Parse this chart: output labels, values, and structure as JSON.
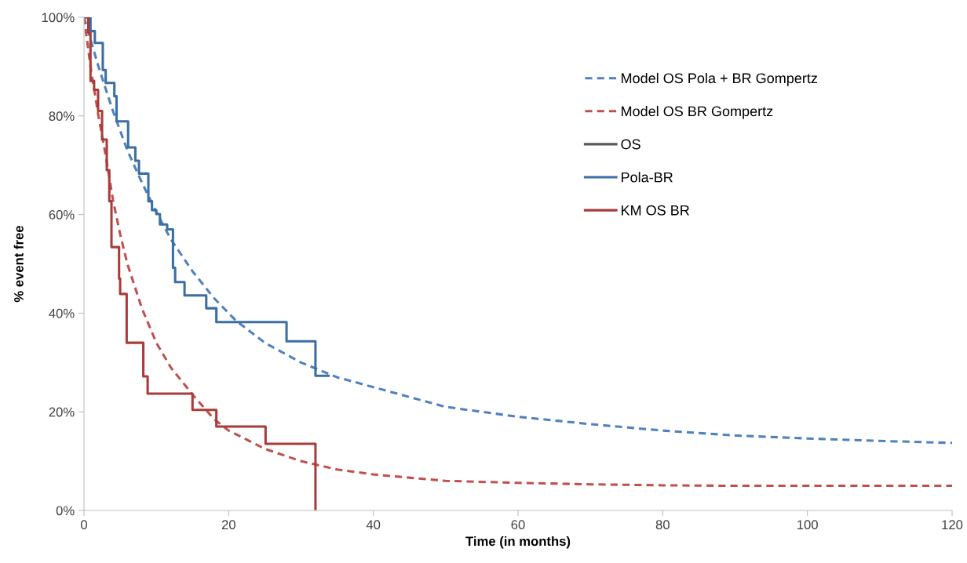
{
  "chart_data": {
    "type": "line",
    "xlabel": "Time (in months)",
    "ylabel": "% event free",
    "xlim": [
      0,
      120
    ],
    "xticks": [
      0,
      20,
      40,
      60,
      80,
      100,
      120
    ],
    "ylim": [
      0,
      100
    ],
    "yticks": [
      {
        "value": 0,
        "label": "0%"
      },
      {
        "value": 20,
        "label": "20%"
      },
      {
        "value": 40,
        "label": "40%"
      },
      {
        "value": 60,
        "label": "60%"
      },
      {
        "value": 80,
        "label": "80%"
      },
      {
        "value": 100,
        "label": "100%"
      }
    ],
    "grid": false,
    "legend": "right",
    "marker": "none",
    "series": [
      {
        "name": "Model OS Pola + BR Gompertz",
        "type": "line",
        "line_style": "dashed",
        "color": "#4f81bd",
        "x": [
          0,
          2,
          4,
          6,
          8,
          10,
          12,
          15,
          18,
          21,
          25,
          30,
          35,
          40,
          45,
          50,
          60,
          70,
          80,
          90,
          100,
          110,
          120
        ],
        "values": [
          100,
          90,
          81,
          73,
          66.5,
          60.5,
          55,
          48.5,
          43,
          38.5,
          34,
          30,
          27,
          25,
          23,
          21,
          19,
          17.5,
          16.2,
          15.2,
          14.6,
          14.1,
          13.7
        ]
      },
      {
        "name": "Model OS BR Gompertz",
        "type": "line",
        "line_style": "dashed",
        "color": "#c0504d",
        "x": [
          0,
          1,
          2,
          3,
          4,
          5,
          6,
          8,
          10,
          12,
          15,
          18,
          20,
          25,
          30,
          35,
          40,
          50,
          60,
          70,
          80,
          90,
          100,
          120
        ],
        "values": [
          100,
          89,
          80,
          72,
          63,
          56,
          50,
          41,
          34,
          29,
          23.5,
          18.5,
          16.2,
          12.5,
          10,
          8.3,
          7.3,
          6,
          5.6,
          5.3,
          5.1,
          5.0,
          5.0,
          5.0
        ]
      },
      {
        "name": "OS",
        "line_style": "solid",
        "color": "#595959"
      },
      {
        "name": "Pola-BR",
        "type": "step",
        "line_style": "solid",
        "color": "#3a6ea5",
        "x": [
          0,
          0.9,
          1.5,
          2.6,
          3.0,
          4.2,
          4.5,
          6.1,
          7.1,
          7.6,
          8.9,
          9.4,
          10.0,
          10.5,
          11.5,
          12.3,
          12.6,
          13.9,
          16.9,
          18.3,
          28.0,
          32.0,
          33.8
        ],
        "values": [
          100,
          97.2,
          94.8,
          89.3,
          86.7,
          84.0,
          78.9,
          73.6,
          70.9,
          68.3,
          62.7,
          60.9,
          60.1,
          58.0,
          57.0,
          49.2,
          46.3,
          43.6,
          41.0,
          38.2,
          34.3,
          27.3,
          27.3
        ]
      },
      {
        "name": "KM OS BR",
        "type": "step",
        "line_style": "solid",
        "color": "#a83c3a",
        "x": [
          0,
          0.6,
          0.9,
          1.4,
          1.95,
          2.5,
          3.15,
          3.5,
          3.8,
          4.85,
          5.0,
          5.9,
          8.2,
          8.8,
          15.0,
          18.3,
          25.1,
          32.0
        ],
        "values": [
          100,
          96.9,
          87.1,
          85.3,
          81.0,
          75.2,
          69.0,
          62.7,
          53.4,
          47.0,
          43.9,
          34.0,
          27.2,
          23.7,
          20.4,
          17.0,
          13.5,
          0
        ]
      }
    ]
  }
}
